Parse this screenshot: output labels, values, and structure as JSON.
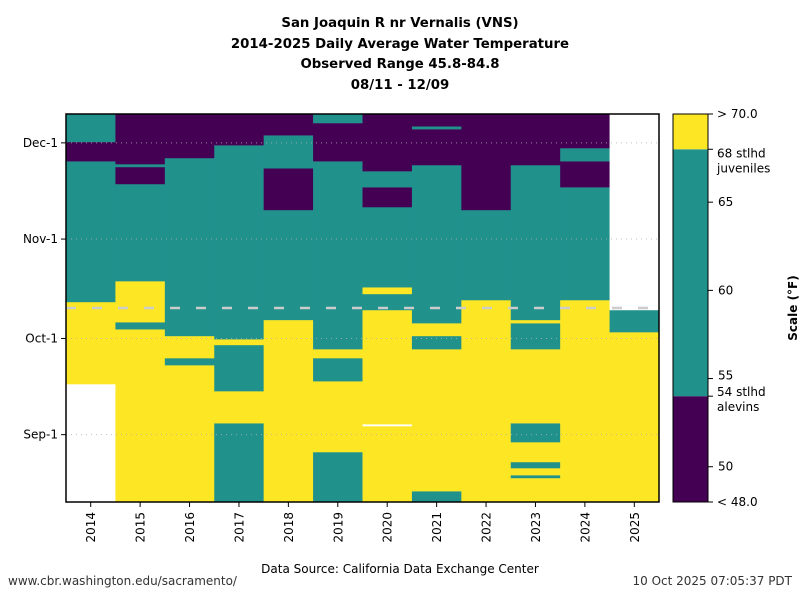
{
  "chart_data": {
    "type": "heatmap",
    "title": [
      "San Joaquin R nr Vernalis (VNS)",
      "2014-2025 Daily Average Water Temperature",
      "Observed Range 45.8-84.8",
      "08/11 - 12/09"
    ],
    "xlabel": "",
    "ylabel": "",
    "x_categories": [
      "2014",
      "2015",
      "2016",
      "2017",
      "2018",
      "2019",
      "2020",
      "2021",
      "2022",
      "2023",
      "2024",
      "2025"
    ],
    "y_range_label": "08/11 - 12/09",
    "y_range_days": [
      0,
      121
    ],
    "y_day_origin": "Aug-11",
    "y_ticks": [
      {
        "label": "Sep-1",
        "day": 21
      },
      {
        "label": "Oct-1",
        "day": 51
      },
      {
        "label": "Nov-1",
        "day": 82
      },
      {
        "label": "Dec-1",
        "day": 112
      }
    ],
    "current_date_line_day": 60.5,
    "categories": {
      "high": {
        "label": "> 68 (stlhd juveniles threshold)",
        "color": "#fde725"
      },
      "mid": {
        "label": "54 - 68",
        "color": "#21918c"
      },
      "low": {
        "label": "< 54 (stlhd alevins threshold)",
        "color": "#440154"
      },
      "none": {
        "label": "no data",
        "color": "#ffffff"
      }
    },
    "series": [
      {
        "name": "2014",
        "segments": [
          [
            "none",
            0,
            36.8
          ],
          [
            "high",
            36.8,
            62.4
          ],
          [
            "mid",
            62.4,
            106.3
          ],
          [
            "low",
            106.3,
            112.3
          ],
          [
            "mid",
            112.3,
            121
          ]
        ]
      },
      {
        "name": "2015",
        "segments": [
          [
            "high",
            0,
            53.9
          ],
          [
            "mid",
            53.9,
            56.1
          ],
          [
            "high",
            56.1,
            68.9
          ],
          [
            "mid",
            68.9,
            99.2
          ],
          [
            "low",
            99.2,
            104.5
          ],
          [
            "mid",
            104.5,
            105.4
          ],
          [
            "low",
            105.4,
            121
          ]
        ]
      },
      {
        "name": "2016",
        "segments": [
          [
            "high",
            0,
            42.7
          ],
          [
            "mid",
            42.7,
            44.9
          ],
          [
            "high",
            44.9,
            51.8
          ],
          [
            "mid",
            51.8,
            107.3
          ],
          [
            "low",
            107.3,
            121
          ]
        ]
      },
      {
        "name": "2017",
        "segments": [
          [
            "mid",
            0,
            24.6
          ],
          [
            "high",
            24.6,
            34.6
          ],
          [
            "mid",
            34.6,
            49.0
          ],
          [
            "high",
            49.0,
            50.8
          ],
          [
            "mid",
            50.8,
            111.3
          ],
          [
            "low",
            111.3,
            121
          ]
        ]
      },
      {
        "name": "2018",
        "segments": [
          [
            "high",
            0,
            56.8
          ],
          [
            "mid",
            56.8,
            91.1
          ],
          [
            "low",
            91.1,
            104.1
          ],
          [
            "mid",
            104.1,
            114.4
          ],
          [
            "low",
            114.4,
            121
          ]
        ]
      },
      {
        "name": "2019",
        "segments": [
          [
            "mid",
            0,
            15.6
          ],
          [
            "high",
            15.6,
            37.7
          ],
          [
            "mid",
            37.7,
            44.9
          ],
          [
            "high",
            44.9,
            47.7
          ],
          [
            "mid",
            47.7,
            106.3
          ],
          [
            "low",
            106.3,
            118.2
          ],
          [
            "mid",
            118.2,
            121
          ]
        ]
      },
      {
        "name": "2020",
        "segments": [
          [
            "high",
            0,
            23.7
          ],
          [
            "none",
            23.7,
            24.3
          ],
          [
            "high",
            24.3,
            59.9
          ],
          [
            "mid",
            59.9,
            64.9
          ],
          [
            "high",
            64.9,
            67.0
          ],
          [
            "mid",
            67.0,
            92.0
          ],
          [
            "low",
            92.0,
            98.2
          ],
          [
            "mid",
            98.2,
            103.2
          ],
          [
            "low",
            103.2,
            121
          ]
        ]
      },
      {
        "name": "2021",
        "segments": [
          [
            "mid",
            0,
            3.4
          ],
          [
            "high",
            3.4,
            47.7
          ],
          [
            "mid",
            47.7,
            51.8
          ],
          [
            "high",
            51.8,
            55.8
          ],
          [
            "mid",
            55.8,
            105.1
          ],
          [
            "low",
            105.1,
            116.3
          ],
          [
            "mid",
            116.3,
            117.2
          ],
          [
            "low",
            117.2,
            121
          ]
        ]
      },
      {
        "name": "2022",
        "segments": [
          [
            "high",
            0,
            63.0
          ],
          [
            "mid",
            63.0,
            91.1
          ],
          [
            "low",
            91.1,
            121
          ]
        ]
      },
      {
        "name": "2023",
        "segments": [
          [
            "high",
            0,
            7.5
          ],
          [
            "mid",
            7.5,
            8.4
          ],
          [
            "high",
            8.4,
            10.6
          ],
          [
            "mid",
            10.6,
            12.5
          ],
          [
            "high",
            12.5,
            18.7
          ],
          [
            "mid",
            18.7,
            24.6
          ],
          [
            "high",
            24.6,
            47.7
          ],
          [
            "mid",
            47.7,
            55.8
          ],
          [
            "high",
            55.8,
            56.8
          ],
          [
            "mid",
            56.8,
            105.1
          ],
          [
            "low",
            105.1,
            121
          ]
        ]
      },
      {
        "name": "2024",
        "segments": [
          [
            "high",
            0,
            63.0
          ],
          [
            "mid",
            63.0,
            98.2
          ],
          [
            "low",
            98.2,
            106.3
          ],
          [
            "mid",
            106.3,
            110.4
          ],
          [
            "low",
            110.4,
            121
          ]
        ]
      },
      {
        "name": "2025",
        "segments": [
          [
            "high",
            0,
            53.0
          ],
          [
            "mid",
            53.0,
            59.9
          ],
          [
            "none",
            59.9,
            121
          ]
        ]
      }
    ],
    "colorbar": {
      "label": "Scale (°F)",
      "range": [
        48.0,
        70.0
      ],
      "bands": [
        {
          "from": 48.0,
          "to": 54,
          "color": "#440154"
        },
        {
          "from": 54,
          "to": 68,
          "color": "#21918c"
        },
        {
          "from": 68,
          "to": 70.0,
          "color": "#fde725"
        }
      ],
      "ticks": [
        {
          "value": 70.0,
          "label": "> 70.0"
        },
        {
          "value": 68,
          "label": "68 stlhd",
          "label2": "juveniles"
        },
        {
          "value": 65,
          "label": "65"
        },
        {
          "value": 60,
          "label": "60"
        },
        {
          "value": 55,
          "label": "55"
        },
        {
          "value": 54,
          "label": "54 stlhd",
          "label2": "alevins"
        },
        {
          "value": 50,
          "label": "50"
        },
        {
          "value": 48.0,
          "label": "< 48.0"
        }
      ]
    }
  },
  "footer": {
    "url": "www.cbr.washington.edu/sacramento/",
    "source": "Data Source: California Data Exchange Center",
    "timestamp": "10 Oct 2025 07:05:37 PDT"
  }
}
